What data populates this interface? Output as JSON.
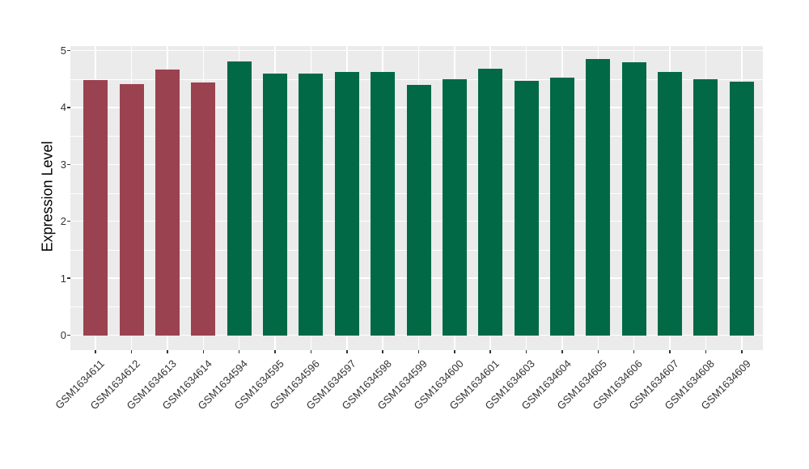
{
  "chart_data": {
    "type": "bar",
    "title": "",
    "xlabel": "",
    "ylabel": "Expression Level",
    "ylim": [
      0,
      5
    ],
    "yticks": [
      0,
      1,
      2,
      3,
      4,
      5
    ],
    "yticks_minor": [
      0.5,
      1.5,
      2.5,
      3.5,
      4.5
    ],
    "legend": "none",
    "grid": {
      "horizontal_major": true,
      "horizontal_minor": true,
      "vertical_major_at_category_centers": true
    },
    "panel_background": "#EBEBEB",
    "gridline_color": "#FFFFFF",
    "tick_color": "#333333",
    "colors": {
      "maroon": "#9B4250",
      "green": "#016946"
    },
    "categories": [
      "GSM1634611",
      "GSM1634612",
      "GSM1634613",
      "GSM1634614",
      "GSM1634594",
      "GSM1634595",
      "GSM1634596",
      "GSM1634597",
      "GSM1634598",
      "GSM1634599",
      "GSM1634600",
      "GSM1634601",
      "GSM1634603",
      "GSM1634604",
      "GSM1634605",
      "GSM1634606",
      "GSM1634607",
      "GSM1634608",
      "GSM1634609"
    ],
    "series": [
      {
        "name": "Expression Level",
        "values": [
          4.48,
          4.41,
          4.66,
          4.44,
          4.81,
          4.59,
          4.6,
          4.62,
          4.62,
          4.39,
          4.5,
          4.68,
          4.47,
          4.52,
          4.85,
          4.8,
          4.62,
          4.5,
          4.46
        ],
        "bar_groups": [
          "maroon",
          "maroon",
          "maroon",
          "maroon",
          "green",
          "green",
          "green",
          "green",
          "green",
          "green",
          "green",
          "green",
          "green",
          "green",
          "green",
          "green",
          "green",
          "green",
          "green"
        ]
      }
    ]
  }
}
